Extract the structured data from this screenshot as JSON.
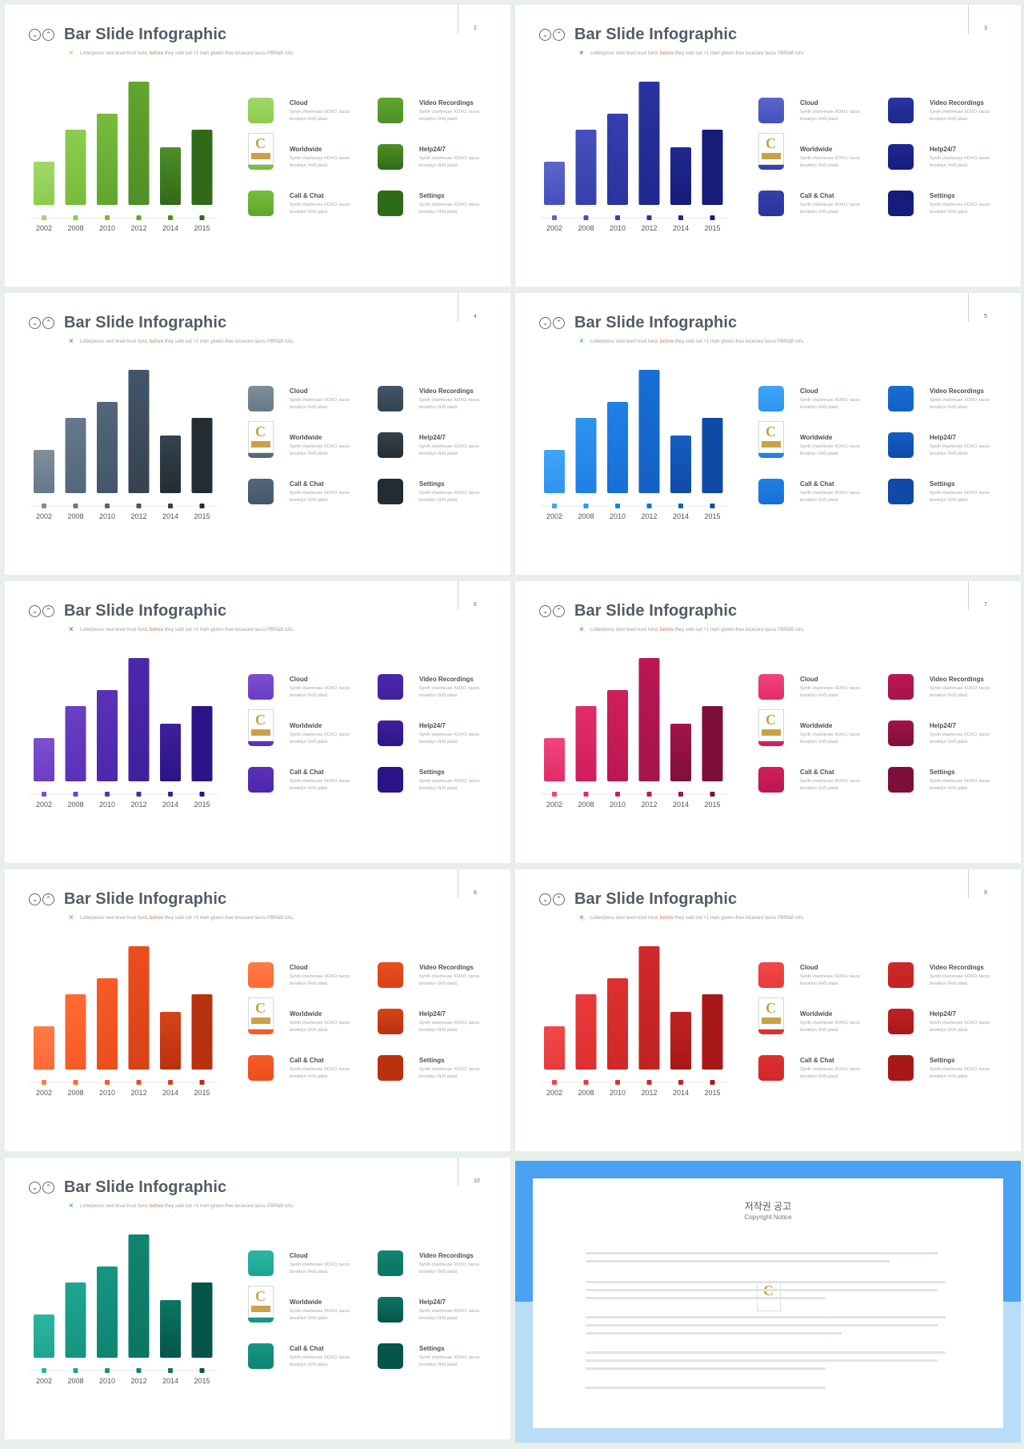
{
  "slide_title": "Bar Slide Infographic",
  "slide_subtitle_pre": "Letterpress next level trust fund, ",
  "slide_subtitle_hl": "before",
  "slide_subtitle_post": " they sold out +1 meh gluten-free locavore tacos PBR&B tofu.",
  "badge_letter": "C",
  "legend_items": [
    {
      "title": "Cloud",
      "desc": "Synth chartreuse XOXO, tacos brooklyn VHS plaid."
    },
    {
      "title": "Video Recordings",
      "desc": "Synth chartreuse XOXO, tacos brooklyn VHS plaid."
    },
    {
      "title": "Worldwide",
      "desc": "Synth chartreuse XOXO, tacos brooklyn VHS plaid."
    },
    {
      "title": "Help24/7",
      "desc": "Synth chartreuse XOXO, tacos brooklyn VHS plaid."
    },
    {
      "title": "Call & Chat",
      "desc": "Synth chartreuse XOXO, tacos brooklyn VHS plaid."
    },
    {
      "title": "Settings",
      "desc": "Synth chartreuse XOXO, tacos brooklyn VHS plaid."
    }
  ],
  "slides": [
    {
      "number": "2",
      "colors": [
        "#9fd86a",
        "#8ccc4e",
        "#78bc3c",
        "#62a52f",
        "#4e8f27",
        "#2f6a18"
      ],
      "x_color": "#8ccc4e"
    },
    {
      "number": "3",
      "colors": [
        "#5a66c8",
        "#4550bc",
        "#3540ad",
        "#2a339e",
        "#1f2890",
        "#151c7a"
      ],
      "x_color": "#3540ad"
    },
    {
      "number": "4",
      "colors": [
        "#7e8f9a",
        "#66798a",
        "#54677a",
        "#43566a",
        "#34434f",
        "#232c33"
      ],
      "x_color": "#54677a"
    },
    {
      "number": "5",
      "colors": [
        "#3fa6f6",
        "#2e93ef",
        "#1f80e6",
        "#176fd6",
        "#1460c4",
        "#0f4aa6"
      ],
      "x_color": "#1f80e6"
    },
    {
      "number": "6",
      "colors": [
        "#7b4fd0",
        "#6a3fc4",
        "#5b31b8",
        "#4d27ac",
        "#40209c",
        "#2b1488"
      ],
      "x_color": "#5b31b8"
    },
    {
      "number": "7",
      "colors": [
        "#f0457a",
        "#e22c6a",
        "#d01e5c",
        "#bc1752",
        "#a4144a",
        "#7e0f3a"
      ],
      "x_color": "#e22c6a"
    },
    {
      "number": "8",
      "colors": [
        "#ff7a45",
        "#ff6a35",
        "#f85a27",
        "#ec4d1d",
        "#d74218",
        "#b83210"
      ],
      "x_color": "#f85a27"
    },
    {
      "number": "9",
      "colors": [
        "#f04848",
        "#e83a3a",
        "#de3030",
        "#d02828",
        "#c02222",
        "#a81818"
      ],
      "x_color": "#e83a3a"
    },
    {
      "number": "10",
      "colors": [
        "#2bb5a0",
        "#1ea590",
        "#169580",
        "#108570",
        "#0c7564",
        "#06544a"
      ],
      "x_color": "#169580"
    }
  ],
  "copyright": {
    "title": "저작권 공고",
    "subtitle": "Copyright Notice",
    "badge_letter": "C"
  },
  "chart_data": {
    "type": "bar",
    "categories": [
      "2002",
      "2008",
      "2010",
      "2012",
      "2014",
      "2015"
    ],
    "values": [
      27,
      47,
      57,
      77,
      36,
      47
    ],
    "ylim": [
      0,
      80
    ],
    "grid": false,
    "legend": "none",
    "note_on_repetition": ""
  }
}
